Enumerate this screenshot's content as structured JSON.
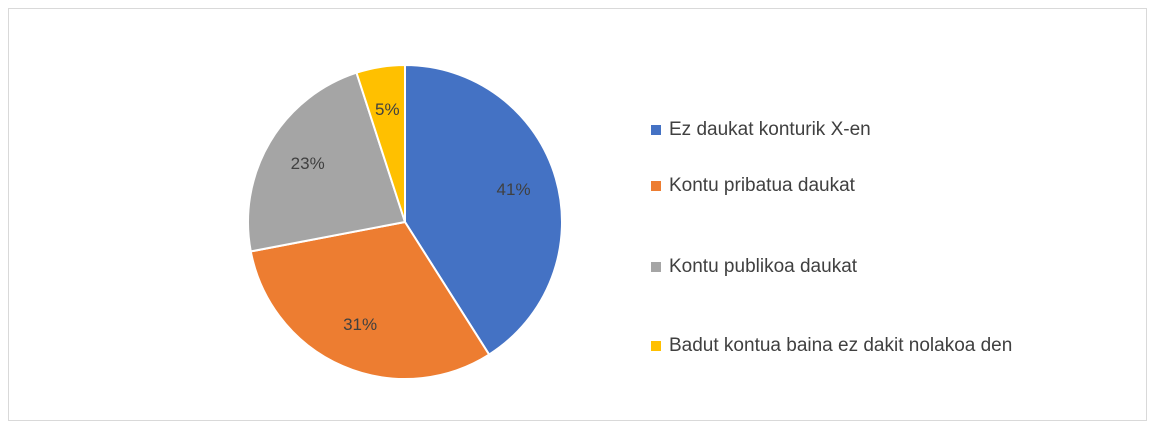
{
  "chart_data": {
    "type": "pie",
    "categories": [
      "Ez daukat konturik X-en",
      "Kontu pribatua daukat",
      "Kontu publikoa daukat",
      "Badut kontua baina ez dakit nolakoa den"
    ],
    "values": [
      41,
      31,
      23,
      5
    ],
    "value_labels": [
      "41%",
      "31%",
      "23%",
      "5%"
    ],
    "colors": [
      "#4472c4",
      "#ed7d31",
      "#a5a5a5",
      "#ffc000"
    ],
    "legend": "right"
  }
}
